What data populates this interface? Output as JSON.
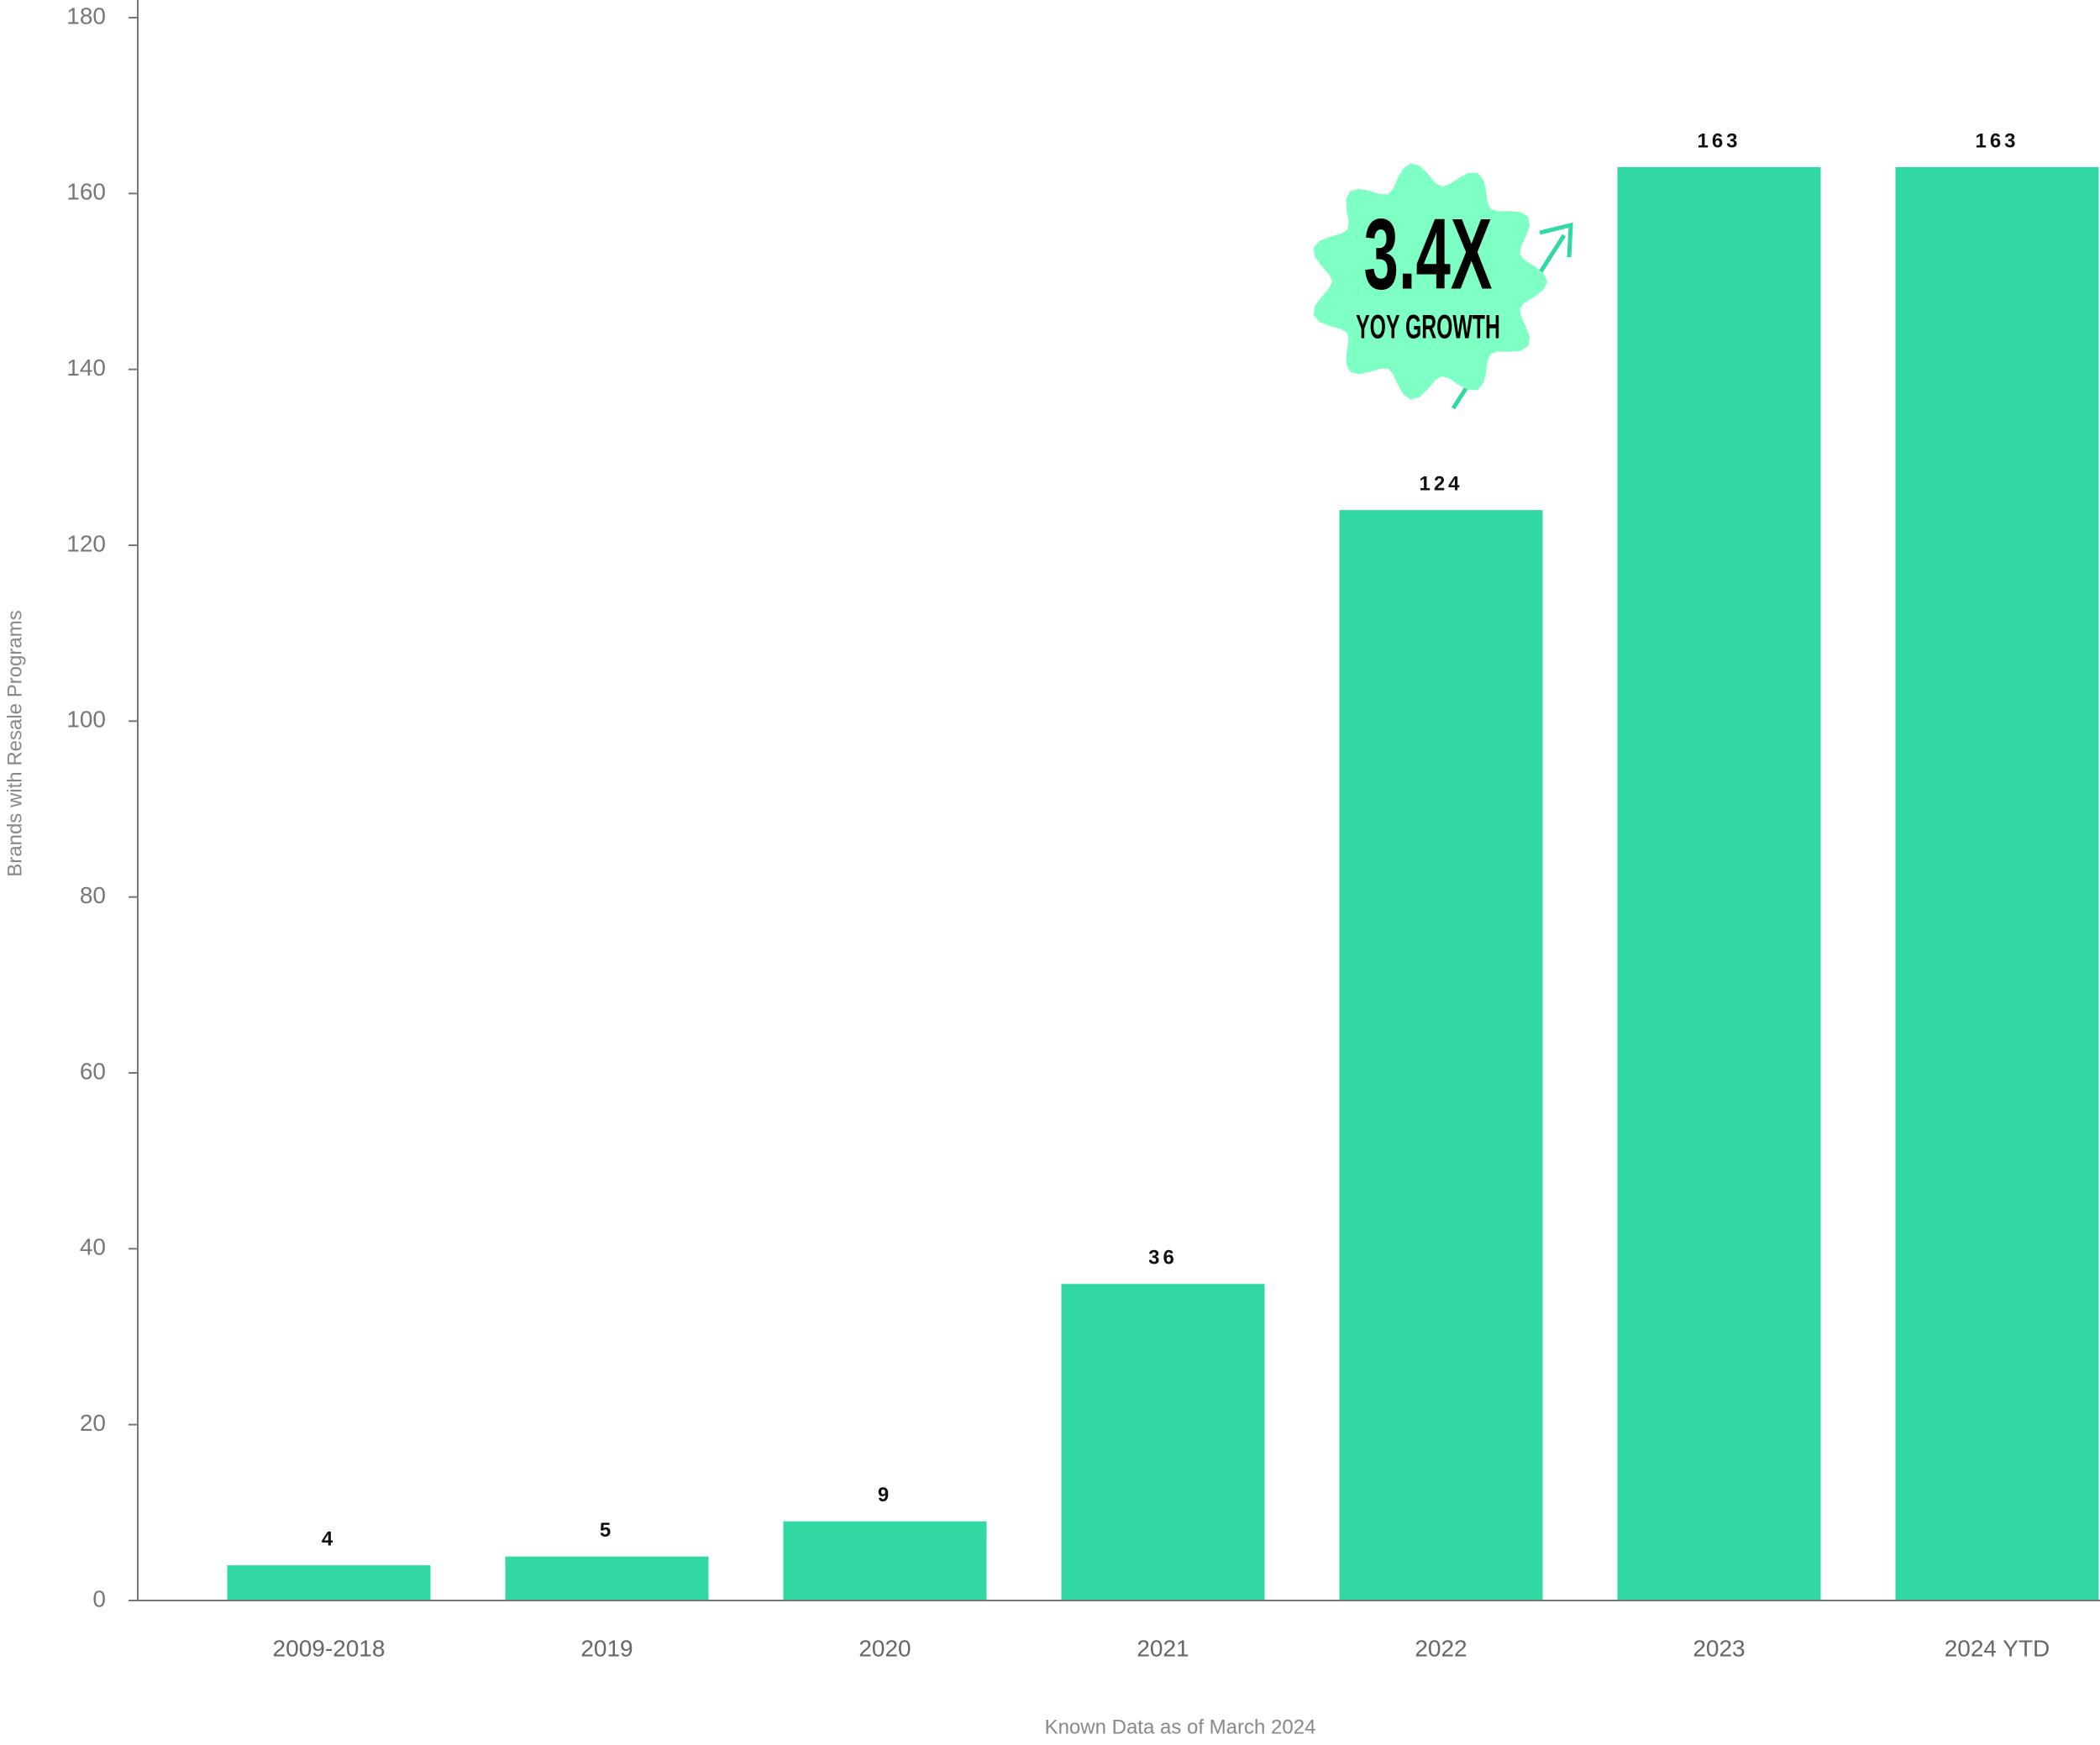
{
  "chart_data": {
    "type": "bar",
    "categories": [
      "2009-2018",
      "2019",
      "2020",
      "2021",
      "2022",
      "2023",
      "2024 YTD"
    ],
    "values": [
      4,
      5,
      9,
      36,
      124,
      163,
      163
    ],
    "color": "#31d8a4",
    "ylim": [
      0,
      180
    ],
    "yticks": [
      0,
      20,
      40,
      60,
      80,
      100,
      120,
      140,
      160,
      180
    ],
    "ylabel": "Brands with Resale Programs",
    "xlabel": "Known Data as of March 2024",
    "annotation": {
      "headline": "3.4X",
      "text": "YOY GROWTH"
    }
  }
}
